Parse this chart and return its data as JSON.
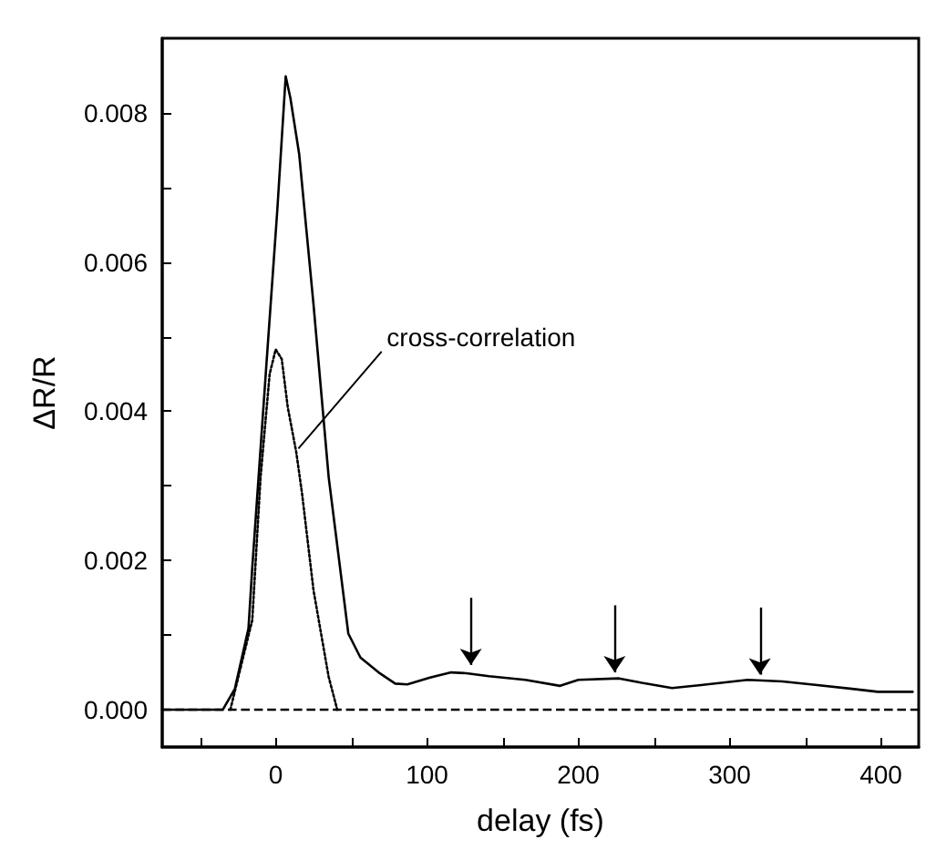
{
  "chart_data": {
    "type": "line",
    "xlabel": "delay (fs)",
    "ylabel": "ΔR/R",
    "xlim": [
      -75,
      425
    ],
    "ylim": [
      -0.0005,
      0.009
    ],
    "xticks": [
      {
        "value": -50,
        "label": null
      },
      {
        "value": 0,
        "label": "0"
      },
      {
        "value": 50,
        "label": null
      },
      {
        "value": 100,
        "label": "100"
      },
      {
        "value": 150,
        "label": null
      },
      {
        "value": 200,
        "label": "200"
      },
      {
        "value": 250,
        "label": null
      },
      {
        "value": 300,
        "label": "300"
      },
      {
        "value": 350,
        "label": null
      },
      {
        "value": 400,
        "label": "400"
      }
    ],
    "yticks": [
      {
        "value": 0,
        "label": "0.000"
      },
      {
        "value": 0.001,
        "label": null
      },
      {
        "value": 0.002,
        "label": "0.002"
      },
      {
        "value": 0.003,
        "label": null
      },
      {
        "value": 0.004,
        "label": "0.004"
      },
      {
        "value": 0.005,
        "label": null
      },
      {
        "value": 0.006,
        "label": "0.006"
      },
      {
        "value": 0.007,
        "label": null
      },
      {
        "value": 0.008,
        "label": "0.008"
      }
    ],
    "grid": false,
    "marker": "none",
    "series": [
      {
        "color": "#000000",
        "line_style": "solid",
        "x": [
          -75,
          -35,
          -27,
          -18,
          -15.5,
          -6,
          1,
          6.6,
          9.7,
          15.5,
          25,
          35,
          48,
          56,
          68,
          79,
          87,
          102,
          116,
          126,
          141,
          165,
          188,
          200,
          227,
          242,
          262,
          281,
          312,
          335,
          358,
          381,
          398,
          421
        ],
        "values": [
          0,
          0,
          0.00028,
          0.00109,
          0.0019,
          0.00467,
          0.00668,
          0.00849,
          0.0082,
          0.00745,
          0.00543,
          0.00312,
          0.00102,
          0.0007,
          0.0005,
          0.00035,
          0.00034,
          0.00043,
          0.0005,
          0.00049,
          0.00045,
          0.0004,
          0.00032,
          0.0004,
          0.00042,
          0.00036,
          0.00029,
          0.00033,
          0.0004,
          0.00038,
          0.00033,
          0.00028,
          0.00024,
          0.00024
        ]
      },
      {
        "color": "#000000",
        "line_style": "dotted",
        "x": [
          -30,
          -15.5,
          -10,
          -4,
          0,
          4,
          8,
          13.6,
          17.4,
          25,
          35,
          40.7
        ],
        "values": [
          0,
          0.0012,
          0.00312,
          0.0045,
          0.00483,
          0.0047,
          0.00405,
          0.00345,
          0.0029,
          0.0016,
          0.00044,
          0
        ]
      }
    ],
    "ref_lines": [
      {
        "axis": "y",
        "value": 0,
        "line_style": "dashed",
        "color": "#000000"
      }
    ],
    "annotations": [
      {
        "text": "cross-correlation",
        "x": 15,
        "y": 0.0035
      }
    ]
  }
}
